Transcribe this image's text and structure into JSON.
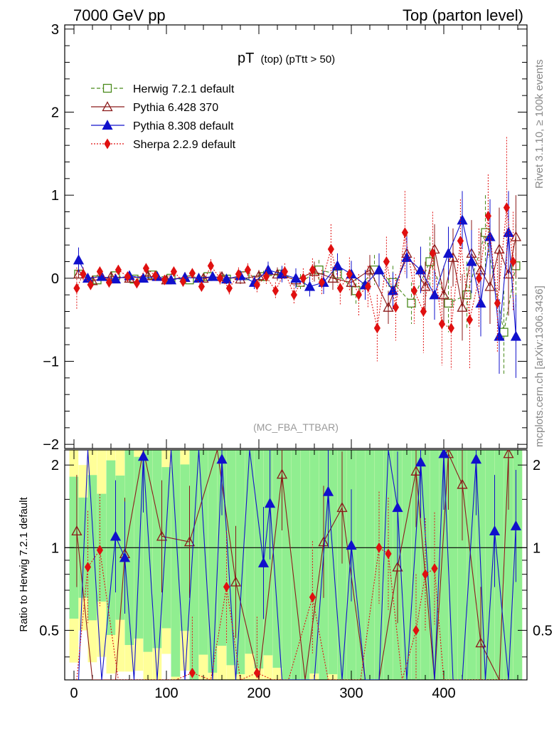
{
  "header": {
    "left": "7000 GeV pp",
    "right": "Top (parton level)"
  },
  "side_labels": {
    "rivet": "Rivet 3.1.10, ≥ 100k events",
    "mcplots": "mcplots.cern.ch [arXiv:1306.3436]"
  },
  "analysis_tag": "(MC_FBA_TTBAR)",
  "colors": {
    "herwig": "#4a8a1c",
    "pythia6": "#8b1a1a",
    "pythia8": "#1010cc",
    "sherpa": "#e01010",
    "band_green": "#90ee90",
    "band_yellow": "#ffff99"
  },
  "chart_data": [
    {
      "id": "main",
      "type": "scatter",
      "title_main": "pT",
      "title_sub": "(top) (pTtt > 50)",
      "xlim": [
        -10,
        490
      ],
      "ylim": [
        -2.05,
        3.05
      ],
      "yticks": [
        -2,
        -1,
        0,
        1,
        2,
        3
      ],
      "ytick_labels": [
        "−2",
        "−1",
        "0",
        "1",
        "2",
        "3"
      ],
      "xticks": [
        0,
        100,
        200,
        300,
        400
      ],
      "legend": [
        {
          "key": "herwig",
          "label": "Herwig 7.2.1 default",
          "marker": "square-open",
          "dash": "5,3"
        },
        {
          "key": "pythia6",
          "label": "Pythia 6.428 370",
          "marker": "triangle-open",
          "dash": ""
        },
        {
          "key": "pythia8",
          "label": "Pythia 8.308 default",
          "marker": "triangle-filled",
          "dash": ""
        },
        {
          "key": "sherpa",
          "label": "Sherpa 2.2.9 default",
          "marker": "diamond-filled",
          "dash": "2,2"
        }
      ],
      "series": [
        {
          "key": "herwig",
          "x": [
            5,
            25,
            45,
            65,
            85,
            105,
            125,
            145,
            165,
            185,
            205,
            225,
            245,
            265,
            285,
            305,
            325,
            345,
            365,
            385,
            405,
            425,
            445,
            465,
            478
          ],
          "y": [
            0.05,
            -0.02,
            0.03,
            -0.01,
            0.04,
            0.0,
            -0.02,
            0.02,
            -0.01,
            0.03,
            0.02,
            0.05,
            -0.05,
            0.1,
            0.05,
            -0.15,
            0.1,
            -0.05,
            -0.3,
            0.2,
            -0.3,
            -0.2,
            0.55,
            -0.65,
            0.15
          ],
          "err": [
            0.05,
            0.05,
            0.05,
            0.05,
            0.05,
            0.05,
            0.05,
            0.05,
            0.05,
            0.06,
            0.07,
            0.08,
            0.1,
            0.12,
            0.14,
            0.16,
            0.18,
            0.2,
            0.25,
            0.3,
            0.35,
            0.4,
            0.45,
            0.5,
            0.5
          ]
        },
        {
          "key": "pythia6",
          "x": [
            5,
            20,
            40,
            60,
            80,
            100,
            120,
            140,
            160,
            180,
            200,
            220,
            240,
            260,
            280,
            300,
            320,
            340,
            360,
            380,
            390,
            400,
            410,
            420,
            430,
            440,
            450,
            460,
            470,
            478
          ],
          "y": [
            0.05,
            -0.03,
            0.02,
            0.0,
            0.03,
            -0.02,
            0.01,
            0.0,
            0.02,
            -0.01,
            0.03,
            0.05,
            -0.02,
            0.08,
            0.0,
            -0.05,
            0.1,
            -0.35,
            0.3,
            -0.1,
            0.35,
            -0.2,
            0.25,
            -0.35,
            0.3,
            0.1,
            -0.1,
            0.35,
            0.05,
            0.5
          ],
          "err": [
            0.05,
            0.05,
            0.05,
            0.05,
            0.05,
            0.05,
            0.05,
            0.05,
            0.05,
            0.06,
            0.07,
            0.08,
            0.1,
            0.12,
            0.14,
            0.16,
            0.18,
            0.2,
            0.25,
            0.3,
            0.3,
            0.35,
            0.35,
            0.4,
            0.4,
            0.45,
            0.45,
            0.5,
            0.5,
            0.5
          ]
        },
        {
          "key": "pythia8",
          "x": [
            5,
            15,
            30,
            45,
            60,
            75,
            90,
            105,
            120,
            135,
            150,
            165,
            180,
            195,
            210,
            225,
            240,
            255,
            270,
            285,
            300,
            315,
            330,
            345,
            360,
            375,
            390,
            405,
            420,
            430,
            440,
            450,
            460,
            470,
            478
          ],
          "y": [
            0.22,
            0.0,
            0.02,
            -0.01,
            0.03,
            0.0,
            0.02,
            -0.02,
            0.01,
            0.0,
            0.02,
            -0.01,
            0.03,
            -0.05,
            0.1,
            0.05,
            0.0,
            -0.1,
            -0.05,
            0.15,
            0.05,
            -0.08,
            0.1,
            -0.15,
            0.25,
            0.1,
            -0.2,
            0.3,
            0.7,
            0.2,
            -0.3,
            0.5,
            -0.7,
            0.55,
            -0.7
          ],
          "err": [
            0.15,
            0.05,
            0.05,
            0.05,
            0.05,
            0.05,
            0.05,
            0.05,
            0.05,
            0.05,
            0.05,
            0.06,
            0.06,
            0.08,
            0.1,
            0.1,
            0.12,
            0.12,
            0.14,
            0.15,
            0.16,
            0.18,
            0.2,
            0.22,
            0.25,
            0.28,
            0.3,
            0.32,
            0.35,
            0.38,
            0.4,
            0.45,
            0.45,
            0.5,
            0.5
          ]
        },
        {
          "key": "sherpa",
          "x": [
            3,
            10,
            18,
            28,
            38,
            48,
            58,
            68,
            78,
            88,
            98,
            108,
            118,
            128,
            138,
            148,
            158,
            168,
            178,
            188,
            198,
            208,
            218,
            228,
            238,
            248,
            258,
            268,
            278,
            288,
            298,
            308,
            318,
            328,
            338,
            348,
            358,
            368,
            378,
            388,
            398,
            408,
            418,
            428,
            438,
            448,
            458,
            468,
            475
          ],
          "y": [
            -0.12,
            0.05,
            -0.08,
            0.08,
            -0.05,
            0.1,
            0.02,
            -0.06,
            0.12,
            0.03,
            -0.02,
            0.08,
            -0.04,
            0.06,
            -0.1,
            0.15,
            0.0,
            -0.12,
            0.05,
            0.1,
            -0.08,
            0.02,
            -0.15,
            0.08,
            -0.2,
            0.0,
            0.1,
            -0.05,
            0.35,
            -0.12,
            0.05,
            -0.2,
            -0.1,
            -0.6,
            0.2,
            -0.35,
            0.55,
            -0.15,
            -0.4,
            0.3,
            -0.55,
            -0.6,
            0.45,
            -0.5,
            0.0,
            0.75,
            -0.3,
            0.85,
            0.2
          ],
          "err": [
            0.25,
            0.08,
            0.06,
            0.06,
            0.06,
            0.06,
            0.06,
            0.06,
            0.06,
            0.06,
            0.06,
            0.06,
            0.06,
            0.06,
            0.06,
            0.08,
            0.08,
            0.08,
            0.08,
            0.08,
            0.1,
            0.1,
            0.1,
            0.1,
            0.12,
            0.12,
            0.14,
            0.15,
            0.3,
            0.2,
            0.2,
            0.25,
            0.25,
            0.4,
            0.3,
            0.4,
            0.5,
            0.4,
            0.5,
            0.5,
            0.5,
            0.5,
            0.5,
            0.6,
            0.6,
            0.5,
            0.6,
            0.85,
            0.6
          ]
        }
      ]
    },
    {
      "id": "ratio",
      "type": "scatter",
      "ylabel": "Ratio to Herwig 7.2.1 default",
      "xlim": [
        -10,
        490
      ],
      "ylim": [
        0.33,
        2.27
      ],
      "yticks": [
        0.5,
        1,
        2
      ],
      "ytick_labels": [
        "0.5",
        "1",
        "2"
      ],
      "xticks": [
        0,
        100,
        200,
        300,
        400
      ],
      "xtick_labels": [
        "0",
        "100",
        "200",
        "300",
        "400"
      ],
      "series": [
        {
          "key": "pythia6",
          "x": [
            3,
            20,
            45,
            55,
            75,
            95,
            125,
            155,
            175,
            200,
            225,
            250,
            270,
            290,
            315,
            330,
            350,
            370,
            390,
            405,
            420,
            440,
            460,
            470
          ],
          "y": [
            1.15,
            0.33,
            0.33,
            0.95,
            2.3,
            1.1,
            1.05,
            2.3,
            0.75,
            0.33,
            1.85,
            0.33,
            1.05,
            1.4,
            0.33,
            0.33,
            0.85,
            1.9,
            0.33,
            2.2,
            1.7,
            0.45,
            0.33,
            2.2
          ]
        },
        {
          "key": "pythia8",
          "x": [
            5,
            15,
            30,
            45,
            55,
            65,
            75,
            90,
            105,
            120,
            135,
            150,
            160,
            175,
            190,
            205,
            212,
            225,
            240,
            260,
            275,
            290,
            300,
            315,
            330,
            340,
            350,
            360,
            375,
            390,
            400,
            410,
            420,
            435,
            445,
            455,
            470,
            478
          ],
          "y": [
            0.33,
            2.3,
            0.33,
            1.1,
            0.92,
            0.33,
            2.15,
            0.33,
            2.3,
            0.33,
            2.3,
            0.33,
            2.1,
            0.33,
            2.3,
            0.88,
            1.45,
            0.33,
            0.3,
            0.33,
            1.6,
            0.33,
            1.02,
            0.33,
            0.33,
            2.3,
            1.4,
            0.33,
            2.05,
            0.33,
            2.2,
            0.33,
            0.33,
            2.1,
            0.33,
            1.15,
            0.33,
            1.2
          ]
        },
        {
          "key": "sherpa",
          "x": [
            3,
            15,
            28,
            48,
            60,
            80,
            98,
            110,
            128,
            148,
            165,
            180,
            198,
            215,
            232,
            258,
            275,
            292,
            310,
            330,
            340,
            355,
            370,
            380,
            390,
            400,
            412,
            428,
            440,
            455,
            470
          ],
          "y": [
            0.33,
            0.85,
            0.98,
            0.33,
            0.33,
            0.33,
            0.33,
            0.33,
            0.35,
            0.33,
            0.72,
            0.33,
            0.35,
            0.33,
            0.33,
            0.66,
            0.33,
            0.33,
            0.33,
            1.0,
            0.95,
            0.33,
            0.5,
            0.8,
            0.84,
            0.33,
            0.33,
            0.33,
            0.33,
            0.33,
            0.33
          ]
        }
      ]
    }
  ]
}
